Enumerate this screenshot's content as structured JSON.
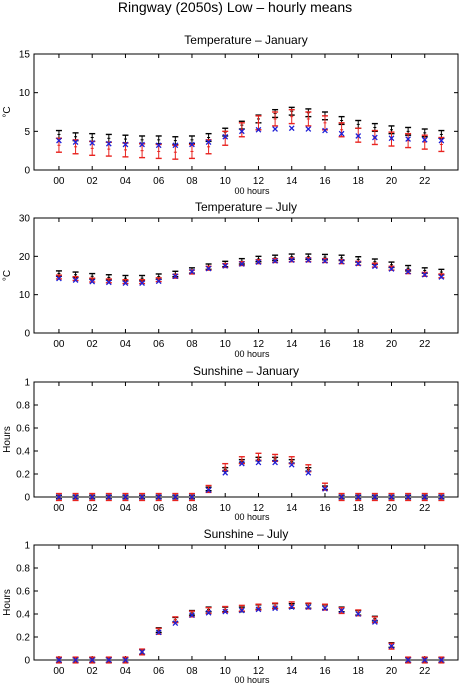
{
  "figure_title": "Ringway (2050s) Low – hourly means",
  "colors": {
    "black": "#000000",
    "red": "#e8231f",
    "blue": "#1f1fd6"
  },
  "chart_data": [
    {
      "type": "scatter",
      "title": "Temperature – January",
      "xlabel": "00 hours",
      "ylabel": "°C",
      "ylim": [
        0,
        15
      ],
      "yticks": [
        "0",
        "5",
        "10",
        "15"
      ],
      "xticks": [
        "00",
        "02",
        "04",
        "06",
        "08",
        "10",
        "12",
        "14",
        "16",
        "18",
        "20",
        "22"
      ],
      "x": [
        0,
        1,
        2,
        3,
        4,
        5,
        6,
        7,
        8,
        9,
        10,
        11,
        12,
        13,
        14,
        15,
        16,
        17,
        18,
        19,
        20,
        21,
        22,
        23
      ],
      "series": [
        {
          "marker": "errorbar",
          "color": "black",
          "err": 0.5,
          "values": [
            4.6,
            4.3,
            4.2,
            4.1,
            4.0,
            3.9,
            3.9,
            3.8,
            3.9,
            4.2,
            4.9,
            5.8,
            6.6,
            7.3,
            7.6,
            7.4,
            7.0,
            6.4,
            5.9,
            5.5,
            5.2,
            5.0,
            4.8,
            4.6
          ]
        },
        {
          "marker": "errorbar",
          "color": "red",
          "err": 0.9,
          "values": [
            3.2,
            3.0,
            2.8,
            2.7,
            2.6,
            2.5,
            2.4,
            2.3,
            2.4,
            3.0,
            4.1,
            5.2,
            6.1,
            6.6,
            6.9,
            6.6,
            6.1,
            5.2,
            4.5,
            4.2,
            4.0,
            3.8,
            3.6,
            3.3
          ]
        },
        {
          "marker": "x",
          "color": "blue",
          "values": [
            3.8,
            3.6,
            3.5,
            3.4,
            3.3,
            3.3,
            3.2,
            3.2,
            3.3,
            3.6,
            4.3,
            5.0,
            5.2,
            5.3,
            5.4,
            5.3,
            5.1,
            4.7,
            4.4,
            4.2,
            4.1,
            4.0,
            3.9,
            3.8
          ]
        }
      ]
    },
    {
      "type": "scatter",
      "title": "Temperature – July",
      "xlabel": "00 hours",
      "ylabel": "°C",
      "ylim": [
        0,
        30
      ],
      "yticks": [
        "0",
        "10",
        "20",
        "30"
      ],
      "xticks": [
        "00",
        "02",
        "04",
        "06",
        "08",
        "10",
        "12",
        "14",
        "16",
        "18",
        "20",
        "22"
      ],
      "x": [
        0,
        1,
        2,
        3,
        4,
        5,
        6,
        7,
        8,
        9,
        10,
        11,
        12,
        13,
        14,
        15,
        16,
        17,
        18,
        19,
        20,
        21,
        22,
        23
      ],
      "series": [
        {
          "marker": "errorbar",
          "color": "black",
          "err": 0.7,
          "values": [
            15.5,
            15.2,
            14.8,
            14.5,
            14.3,
            14.3,
            14.7,
            15.4,
            16.3,
            17.3,
            18.0,
            18.7,
            19.3,
            19.6,
            19.9,
            19.9,
            19.8,
            19.6,
            19.2,
            18.6,
            17.8,
            16.9,
            16.3,
            15.9
          ]
        },
        {
          "marker": "errorbar",
          "color": "red",
          "err": 0.5,
          "values": [
            14.6,
            14.2,
            13.8,
            13.6,
            13.4,
            13.4,
            13.9,
            14.8,
            15.9,
            16.9,
            17.6,
            18.1,
            18.6,
            18.9,
            19.1,
            19.1,
            18.9,
            18.6,
            18.2,
            17.7,
            16.9,
            16.0,
            15.3,
            14.9
          ]
        },
        {
          "marker": "x",
          "color": "blue",
          "values": [
            14.2,
            13.8,
            13.4,
            13.2,
            13.0,
            13.0,
            13.5,
            14.8,
            16.0,
            16.8,
            17.5,
            18.0,
            18.5,
            18.8,
            19.0,
            19.0,
            18.8,
            18.6,
            18.1,
            17.4,
            16.7,
            16.0,
            15.2,
            14.6
          ]
        }
      ]
    },
    {
      "type": "scatter",
      "title": "Sunshine – January",
      "xlabel": "00 hours",
      "ylabel": "Hours",
      "ylim": [
        0,
        1
      ],
      "yticks": [
        "0",
        "0.2",
        "0.4",
        "0.6",
        "0.8",
        "1"
      ],
      "xticks": [
        "00",
        "02",
        "04",
        "06",
        "08",
        "10",
        "12",
        "14",
        "16",
        "18",
        "20",
        "22"
      ],
      "x": [
        0,
        1,
        2,
        3,
        4,
        5,
        6,
        7,
        8,
        9,
        10,
        11,
        12,
        13,
        14,
        15,
        16,
        17,
        18,
        19,
        20,
        21,
        22,
        23
      ],
      "series": [
        {
          "marker": "errorbar",
          "color": "black",
          "err": 0.015,
          "values": [
            0,
            0,
            0,
            0,
            0,
            0,
            0,
            0,
            0,
            0.07,
            0.24,
            0.31,
            0.33,
            0.33,
            0.31,
            0.24,
            0.08,
            0,
            0,
            0,
            0,
            0,
            0,
            0
          ]
        },
        {
          "marker": "errorbar",
          "color": "red",
          "err": 0.03,
          "values": [
            0,
            0,
            0,
            0,
            0,
            0,
            0,
            0,
            0,
            0.07,
            0.26,
            0.32,
            0.35,
            0.34,
            0.32,
            0.25,
            0.09,
            0,
            0,
            0,
            0,
            0,
            0,
            0
          ]
        },
        {
          "marker": "x",
          "color": "blue",
          "values": [
            0,
            0,
            0,
            0,
            0,
            0,
            0,
            0,
            0,
            0.06,
            0.21,
            0.29,
            0.3,
            0.3,
            0.28,
            0.21,
            0.07,
            0,
            0,
            0,
            0,
            0,
            0,
            0
          ]
        }
      ]
    },
    {
      "type": "scatter",
      "title": "Sunshine – July",
      "xlabel": "00 hours",
      "ylabel": "Hours",
      "ylim": [
        0,
        1
      ],
      "yticks": [
        "0",
        "0.2",
        "0.4",
        "0.6",
        "0.8",
        "1"
      ],
      "xticks": [
        "00",
        "02",
        "04",
        "06",
        "08",
        "10",
        "12",
        "14",
        "16",
        "18",
        "20",
        "22"
      ],
      "x": [
        0,
        1,
        2,
        3,
        4,
        5,
        6,
        7,
        8,
        9,
        10,
        11,
        12,
        13,
        14,
        15,
        16,
        17,
        18,
        19,
        20,
        21,
        22,
        23
      ],
      "series": [
        {
          "marker": "errorbar",
          "color": "black",
          "err": 0.02,
          "values": [
            0,
            0,
            0,
            0,
            0,
            0.07,
            0.26,
            0.35,
            0.41,
            0.44,
            0.44,
            0.44,
            0.46,
            0.47,
            0.47,
            0.47,
            0.46,
            0.44,
            0.41,
            0.36,
            0.13,
            0,
            0,
            0
          ]
        },
        {
          "marker": "errorbar",
          "color": "red",
          "err": 0.025,
          "values": [
            0,
            0,
            0,
            0,
            0,
            0.07,
            0.25,
            0.35,
            0.4,
            0.43,
            0.44,
            0.45,
            0.46,
            0.47,
            0.48,
            0.47,
            0.46,
            0.43,
            0.41,
            0.35,
            0.12,
            0,
            0,
            0
          ]
        },
        {
          "marker": "x",
          "color": "blue",
          "values": [
            0,
            0,
            0,
            0,
            0,
            0.07,
            0.24,
            0.32,
            0.39,
            0.41,
            0.42,
            0.43,
            0.44,
            0.45,
            0.46,
            0.46,
            0.45,
            0.43,
            0.4,
            0.33,
            0.12,
            0,
            0,
            0
          ]
        }
      ]
    }
  ]
}
